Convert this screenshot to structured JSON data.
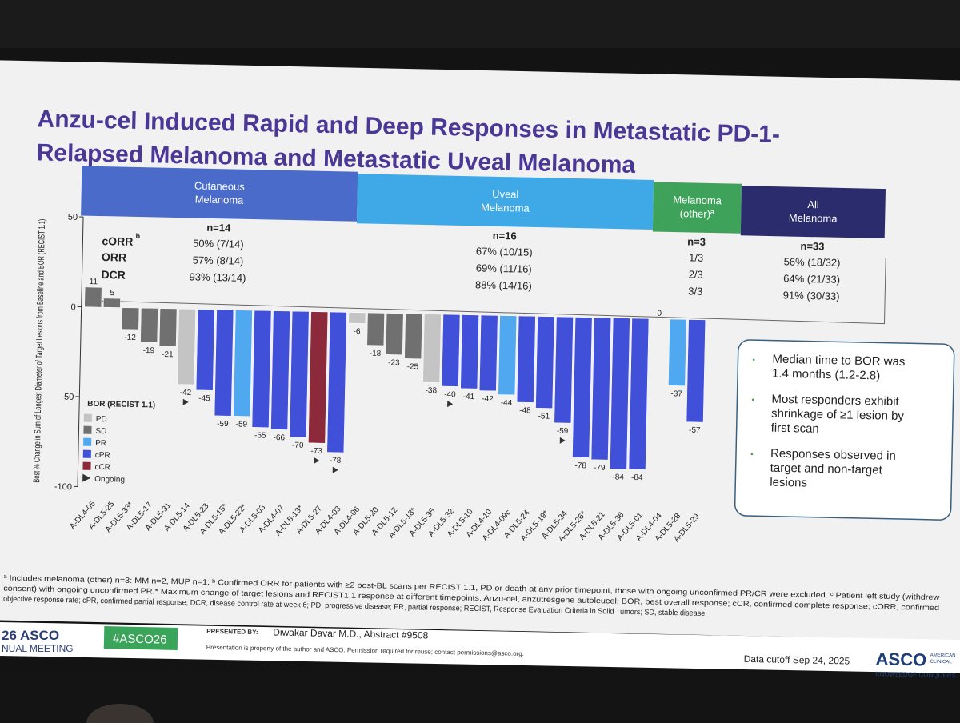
{
  "slide": {
    "title_line1": "Anzu-cel Induced Rapid and Deep Responses in Metastatic PD-1-",
    "title_line2": "Relapsed Melanoma and Metastatic Uveal Melanoma"
  },
  "groups": [
    {
      "label_l1": "Cutaneous",
      "label_l2": "Melanoma",
      "n": "n=14",
      "corr": "50% (7/14)",
      "orr": "57% (8/14)",
      "dcr": "93% (13/14)",
      "color": "#4a6bc9"
    },
    {
      "label_l1": "Uveal",
      "label_l2": "Melanoma",
      "n": "n=16",
      "corr": "67% (10/15)",
      "orr": "69% (11/16)",
      "dcr": "88% (14/16)",
      "color": "#3fa9e8"
    },
    {
      "label_l1": "Melanoma",
      "label_l2": "(other)ª",
      "n": "n=3",
      "corr": "1/3",
      "orr": "2/3",
      "dcr": "3/3",
      "color": "#3fa25a"
    },
    {
      "label_l1": "All",
      "label_l2": "Melanoma",
      "n": "n=33",
      "corr": "56% (18/32)",
      "orr": "64% (21/33)",
      "dcr": "91% (30/33)",
      "color": "#2a2c6e"
    }
  ],
  "metric_labels": {
    "corr": "cORR",
    "corr_sup": "b",
    "orr": "ORR",
    "dcr": "DCR"
  },
  "legend": {
    "title": "BOR (RECIST 1.1)",
    "items": [
      {
        "label": "PD",
        "color": "#c4c4c4"
      },
      {
        "label": "SD",
        "color": "#707070"
      },
      {
        "label": "PR",
        "color": "#4fa8f0"
      },
      {
        "label": "cPR",
        "color": "#4150d8"
      },
      {
        "label": "cCR",
        "color": "#8c2a3c"
      }
    ],
    "ongoing_label": "Ongoing"
  },
  "chart_data": {
    "type": "bar",
    "ylabel": "Best % Change in Sum of Longest Diameter of Target Lesions from Baseline and BOR (RECIST 1.1)",
    "ylim": [
      -100,
      50
    ],
    "yticks": [
      50,
      0,
      -50,
      -100
    ],
    "categories": [
      "A-DL4-05",
      "A-DL5-25",
      "A-DL5-33*",
      "A-DL5-17",
      "A-DL5-31",
      "A-DL5-14",
      "A-DL5-23",
      "A-DL5-15*",
      "A-DL5-22*",
      "A-DL5-03",
      "A-DL4-07",
      "A-DL5-13*",
      "A-DL5-27",
      "A-DL4-03",
      "A-DL4-06",
      "A-DL5-20",
      "A-DL5-12",
      "A-DL5-18*",
      "A-DL5-35",
      "A-DL5-32",
      "A-DL5-10",
      "A-DL4-10",
      "A-DL4-09c",
      "A-DL5-24",
      "A-DL5-19*",
      "A-DL5-34",
      "A-DL5-26*",
      "A-DL5-21",
      "A-DL5-36",
      "A-DL5-01",
      "A-DL4-04",
      "A-DL5-28",
      "A-DL5-29"
    ],
    "values": [
      11,
      5,
      -12,
      -19,
      -21,
      -42,
      -45,
      -59,
      -59,
      -65,
      -66,
      -70,
      -73,
      -78,
      -6,
      -18,
      -23,
      -25,
      -38,
      -40,
      -41,
      -42,
      -44,
      -48,
      -51,
      -59,
      -78,
      -79,
      -84,
      -84,
      0,
      -37,
      -57
    ],
    "bor": [
      "SD",
      "SD",
      "SD",
      "SD",
      "SD",
      "PD",
      "cPR",
      "cPR",
      "PR",
      "cPR",
      "cPR",
      "cPR",
      "cCR",
      "cPR",
      "PD",
      "SD",
      "SD",
      "SD",
      "PD",
      "cPR",
      "cPR",
      "cPR",
      "PR",
      "cPR",
      "cPR",
      "cPR",
      "cPR",
      "cPR",
      "cPR",
      "cPR",
      "SD",
      "PR",
      "cPR"
    ],
    "ongoing": [
      false,
      false,
      false,
      false,
      false,
      true,
      false,
      false,
      false,
      false,
      false,
      false,
      true,
      true,
      false,
      false,
      false,
      false,
      false,
      true,
      false,
      false,
      false,
      false,
      false,
      true,
      false,
      false,
      false,
      false,
      false,
      false,
      false
    ],
    "groups": [
      "Cutaneous Melanoma",
      "Uveal Melanoma",
      "Melanoma (other)"
    ]
  },
  "callout": {
    "bullets": [
      "Median time to BOR was 1.4 months (1.2-2.8)",
      "Most responders exhibit shrinkage of ≥1 lesion by first scan",
      "Responses observed in target and non-target lesions"
    ]
  },
  "footnote": {
    "line1": "ª Includes melanoma (other) n=3: MM n=2, MUP n=1; ᵇ Confirmed ORR for patients with ≥2 post-BL scans per RECIST 1.1, PD or death at any prior timepoint, those with ongoing unconfirmed PR/CR were excluded. ᶜ Patient left study (withdrew",
    "line2": "consent) with ongoing unconfirmed PR.* Maximum change of target lesions and RECIST1.1 response at different timepoints. Anzu-cel, anzutresgene autoleucel; BOR, best overall response; cCR, confirmed complete response; cORR, confirmed",
    "line3": "objective response rate; cPR, confirmed partial response; DCR, disease control rate at week 6; PD, progressive disease; PR, partial response; RECIST, Response Evaluation Criteria in Solid Tumors; SD, stable disease."
  },
  "footer": {
    "meeting_l1": "26 ASCO",
    "meeting_l2": "NUAL MEETING",
    "hashtag": "#ASCO26",
    "presented_by": "PRESENTED BY:",
    "presenter": "Diwakar Davar M.D., Abstract #9508",
    "permission": "Presentation is property of the author and ASCO. Permission required for reuse; contact permissions@asco.org.",
    "cutoff": "Data cutoff Sep 24, 2025",
    "asco": "ASCO",
    "asco_small1": "AMERICAN",
    "asco_small2": "CLINICAL",
    "tagline": "KNOWLEDGE CONQUERS"
  }
}
